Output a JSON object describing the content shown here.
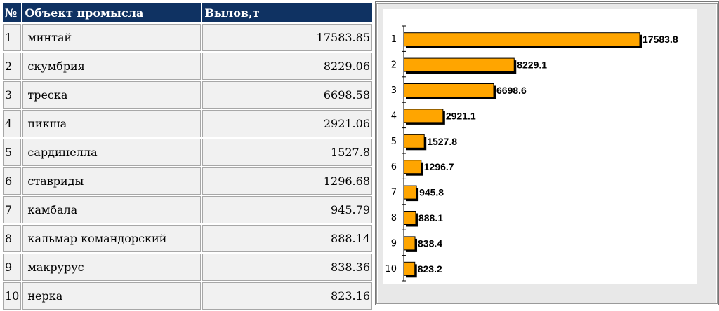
{
  "table": {
    "headers": {
      "num": "№",
      "name": "Объект промысла",
      "value": "Вылов,т"
    },
    "rows": [
      {
        "num": "1",
        "name": "минтай",
        "value": "17583.85"
      },
      {
        "num": "2",
        "name": "скумбрия",
        "value": "8229.06"
      },
      {
        "num": "3",
        "name": "треска",
        "value": "6698.58"
      },
      {
        "num": "4",
        "name": "пикша",
        "value": "2921.06"
      },
      {
        "num": "5",
        "name": "сардинелла",
        "value": "1527.8"
      },
      {
        "num": "6",
        "name": "ставриды",
        "value": "1296.68"
      },
      {
        "num": "7",
        "name": "камбала",
        "value": "945.79"
      },
      {
        "num": "8",
        "name": "кальмар командорский",
        "value": "888.14"
      },
      {
        "num": "9",
        "name": "макрурус",
        "value": "838.36"
      },
      {
        "num": "10",
        "name": "нерка",
        "value": "823.16"
      }
    ]
  },
  "chart_data": {
    "type": "bar",
    "orientation": "horizontal",
    "categories": [
      "1",
      "2",
      "3",
      "4",
      "5",
      "6",
      "7",
      "8",
      "9",
      "10"
    ],
    "values": [
      17583.8,
      8229.1,
      6698.6,
      2921.1,
      1527.8,
      1296.7,
      945.8,
      888.1,
      838.4,
      823.2
    ],
    "value_labels": [
      "17583.8",
      "8229.1",
      "6698.6",
      "2921.1",
      "1527.8",
      "1296.7",
      "945.8",
      "888.1",
      "838.4",
      "823.2"
    ],
    "title": "",
    "xlabel": "",
    "ylabel": "",
    "xlim": [
      0,
      17583.8
    ],
    "grid": false,
    "colors": {
      "bar": "#ffa500",
      "bar_edge": "#000000",
      "shadow": "#000000",
      "plot_bg": "#ffffff",
      "panel_bg": "#e8e8e8"
    }
  }
}
